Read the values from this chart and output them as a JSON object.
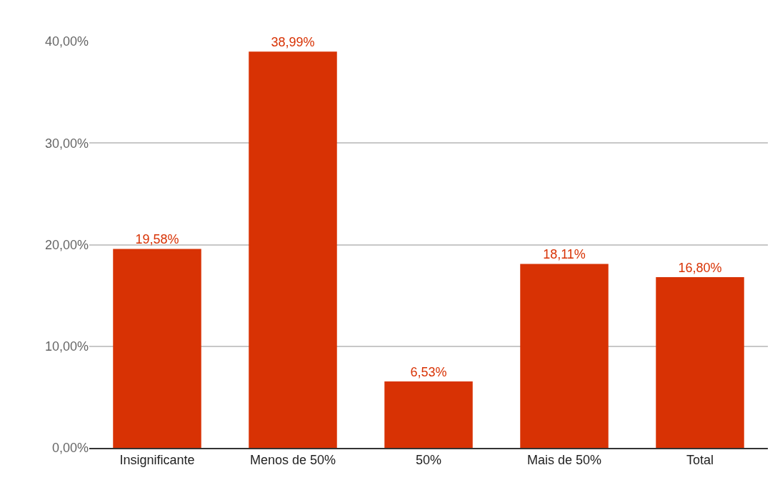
{
  "chart_data": {
    "type": "bar",
    "categories": [
      "Insignificante",
      "Menos de 50%",
      "50%",
      "Mais de 50%",
      "Total"
    ],
    "values": [
      19.58,
      38.99,
      6.53,
      18.11,
      16.8
    ],
    "value_labels": [
      "19,58%",
      "38,99%",
      "6,53%",
      "18,11%",
      "16,80%"
    ],
    "color": "#d83204",
    "ylim": [
      0,
      40
    ],
    "yticks": [
      {
        "value": 0,
        "label": "0,00%"
      },
      {
        "value": 10,
        "label": "10,00%"
      },
      {
        "value": 20,
        "label": "20,00%"
      },
      {
        "value": 30,
        "label": "30,00%"
      },
      {
        "value": 40,
        "label": "40,00%"
      }
    ],
    "grid": "y",
    "legend": false
  }
}
